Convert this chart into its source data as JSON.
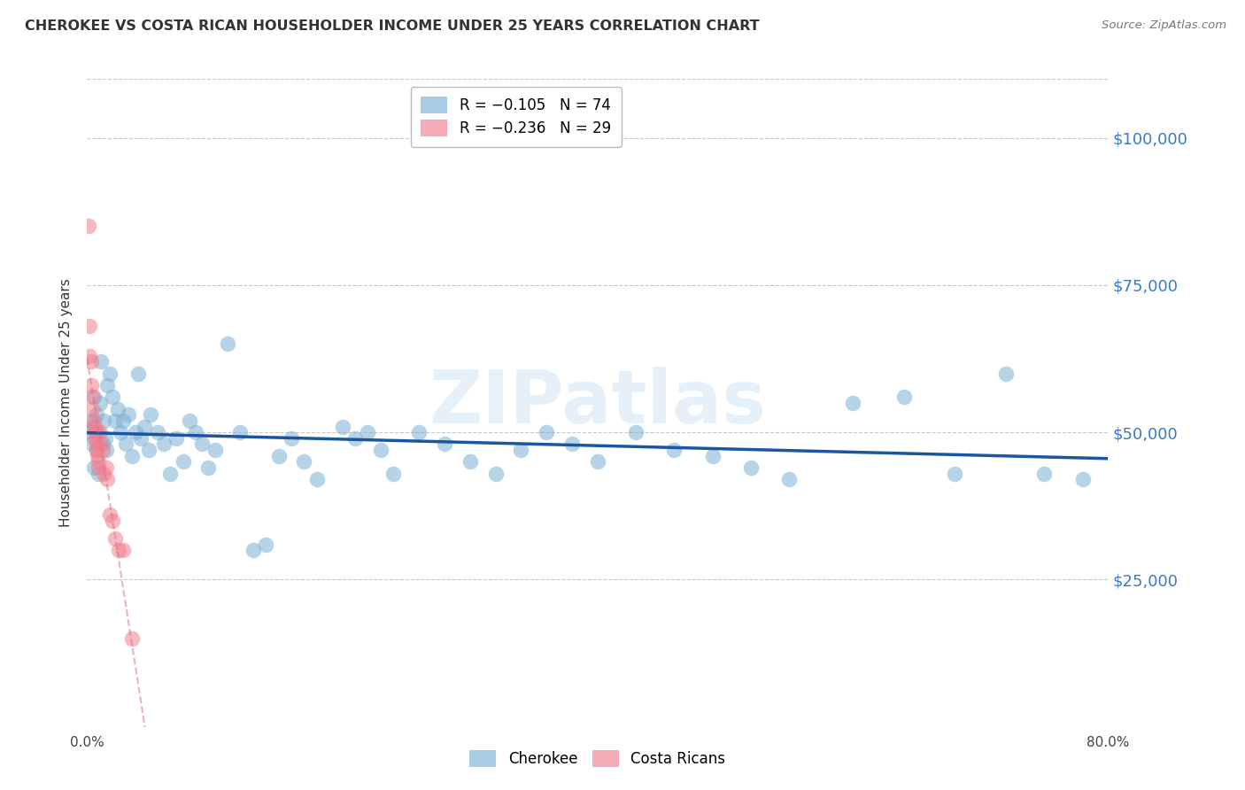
{
  "title": "CHEROKEE VS COSTA RICAN HOUSEHOLDER INCOME UNDER 25 YEARS CORRELATION CHART",
  "source": "Source: ZipAtlas.com",
  "ylabel": "Householder Income Under 25 years",
  "xlim": [
    0.0,
    0.8
  ],
  "ylim": [
    0,
    110000
  ],
  "yticks": [
    0,
    25000,
    50000,
    75000,
    100000
  ],
  "ytick_labels": [
    "",
    "$25,000",
    "$50,000",
    "$75,000",
    "$100,000"
  ],
  "watermark": "ZIPatlas",
  "cherokee_color": "#7bafd4",
  "costa_rican_color": "#f08090",
  "cherokee_line_color": "#1a56a0",
  "costa_rican_line_color": "#e07080",
  "background_color": "#ffffff",
  "grid_color": "#c8c8c8",
  "cherokee_x": [
    0.002,
    0.003,
    0.004,
    0.005,
    0.005,
    0.006,
    0.007,
    0.007,
    0.008,
    0.009,
    0.01,
    0.011,
    0.012,
    0.013,
    0.014,
    0.015,
    0.016,
    0.018,
    0.02,
    0.022,
    0.024,
    0.026,
    0.028,
    0.03,
    0.032,
    0.035,
    0.038,
    0.04,
    0.042,
    0.045,
    0.048,
    0.05,
    0.055,
    0.06,
    0.065,
    0.07,
    0.075,
    0.08,
    0.085,
    0.09,
    0.095,
    0.1,
    0.11,
    0.12,
    0.13,
    0.14,
    0.15,
    0.16,
    0.17,
    0.18,
    0.2,
    0.21,
    0.22,
    0.23,
    0.24,
    0.26,
    0.28,
    0.3,
    0.32,
    0.34,
    0.36,
    0.38,
    0.4,
    0.43,
    0.46,
    0.49,
    0.52,
    0.55,
    0.6,
    0.64,
    0.68,
    0.72,
    0.75,
    0.78
  ],
  "cherokee_y": [
    50000,
    52000,
    48000,
    44000,
    56000,
    51000,
    53000,
    47000,
    50000,
    43000,
    55000,
    62000,
    48000,
    52000,
    49000,
    47000,
    58000,
    60000,
    56000,
    52000,
    54000,
    50000,
    52000,
    48000,
    53000,
    46000,
    50000,
    60000,
    49000,
    51000,
    47000,
    53000,
    50000,
    48000,
    43000,
    49000,
    45000,
    52000,
    50000,
    48000,
    44000,
    47000,
    65000,
    50000,
    30000,
    31000,
    46000,
    49000,
    45000,
    42000,
    51000,
    49000,
    50000,
    47000,
    43000,
    50000,
    48000,
    45000,
    43000,
    47000,
    50000,
    48000,
    45000,
    50000,
    47000,
    46000,
    44000,
    42000,
    55000,
    56000,
    43000,
    60000,
    43000,
    42000
  ],
  "costa_rican_x": [
    0.001,
    0.002,
    0.002,
    0.003,
    0.003,
    0.004,
    0.004,
    0.005,
    0.005,
    0.006,
    0.006,
    0.007,
    0.007,
    0.008,
    0.008,
    0.009,
    0.009,
    0.01,
    0.011,
    0.012,
    0.013,
    0.015,
    0.016,
    0.018,
    0.02,
    0.022,
    0.025,
    0.028,
    0.035
  ],
  "costa_rican_y": [
    85000,
    68000,
    63000,
    62000,
    58000,
    56000,
    54000,
    52000,
    51000,
    50000,
    49000,
    48000,
    47000,
    50000,
    46000,
    45000,
    44000,
    50000,
    48000,
    47000,
    43000,
    44000,
    42000,
    36000,
    35000,
    32000,
    30000,
    30000,
    15000
  ]
}
